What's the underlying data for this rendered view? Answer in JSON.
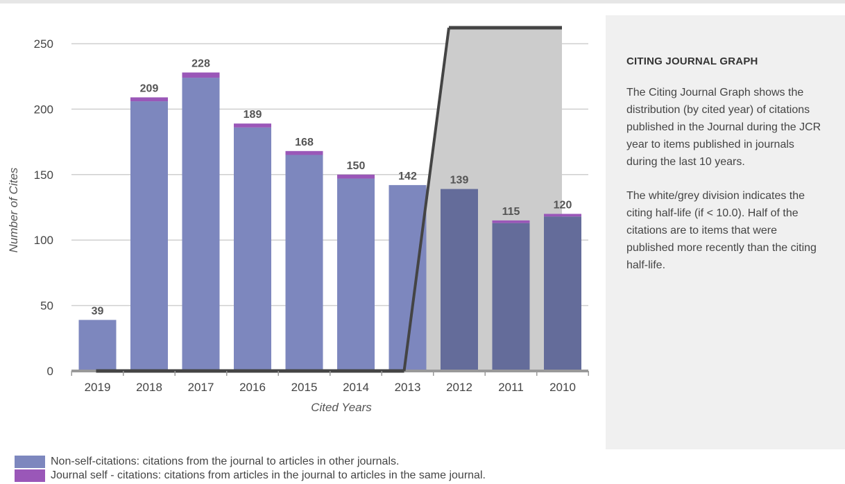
{
  "chart_data": {
    "type": "bar",
    "categories": [
      "2019",
      "2018",
      "2017",
      "2016",
      "2015",
      "2014",
      "2013",
      "2012",
      "2011",
      "2010"
    ],
    "series": [
      {
        "name": "Non-self-citations: citations from the journal to articles in other journals.",
        "values": [
          39,
          206,
          224,
          186,
          165,
          147,
          142,
          139,
          113,
          118
        ]
      },
      {
        "name": "Journal self - citations: citations from articles in the journal to articles in the same journal.",
        "values": [
          0,
          3,
          4,
          3,
          3,
          3,
          0,
          0,
          2,
          2
        ]
      }
    ],
    "totals": [
      "39",
      "209",
      "228",
      "189",
      "168",
      "150",
      "142",
      "139",
      "115",
      "120"
    ],
    "xlabel": "Cited Years",
    "ylabel": "Number of Cites",
    "ylim": [
      0,
      260
    ],
    "yticks": [
      "0",
      "50",
      "100",
      "150",
      "200",
      "250"
    ],
    "grid": true,
    "half_life_division_after": "2013",
    "shaded_region_start": "2013",
    "shaded_region_end": "2010",
    "colors": {
      "non_self": "#7d87be",
      "non_self_shaded": "#646c9a",
      "self": "#9a57b8",
      "shade": "#cccccc",
      "division_line": "#444444",
      "gridline": "#cfcfcf",
      "axis": "#999999"
    }
  },
  "panel": {
    "title": "CITING JOURNAL GRAPH",
    "paragraph1": "The Citing Journal Graph shows the distribution (by cited year) of citations published in the Journal during the JCR year to items published in journals during the last 10 years.",
    "paragraph2": "The white/grey division indicates the citing half-life (if < 10.0). Half of the citations are to items that were published more recently than the citing half-life."
  },
  "legend": {
    "non_self_label": "Non-self-citations: citations from the journal to articles in other journals.",
    "self_label": "Journal self - citations: citations from articles in the journal to articles in the same journal."
  }
}
